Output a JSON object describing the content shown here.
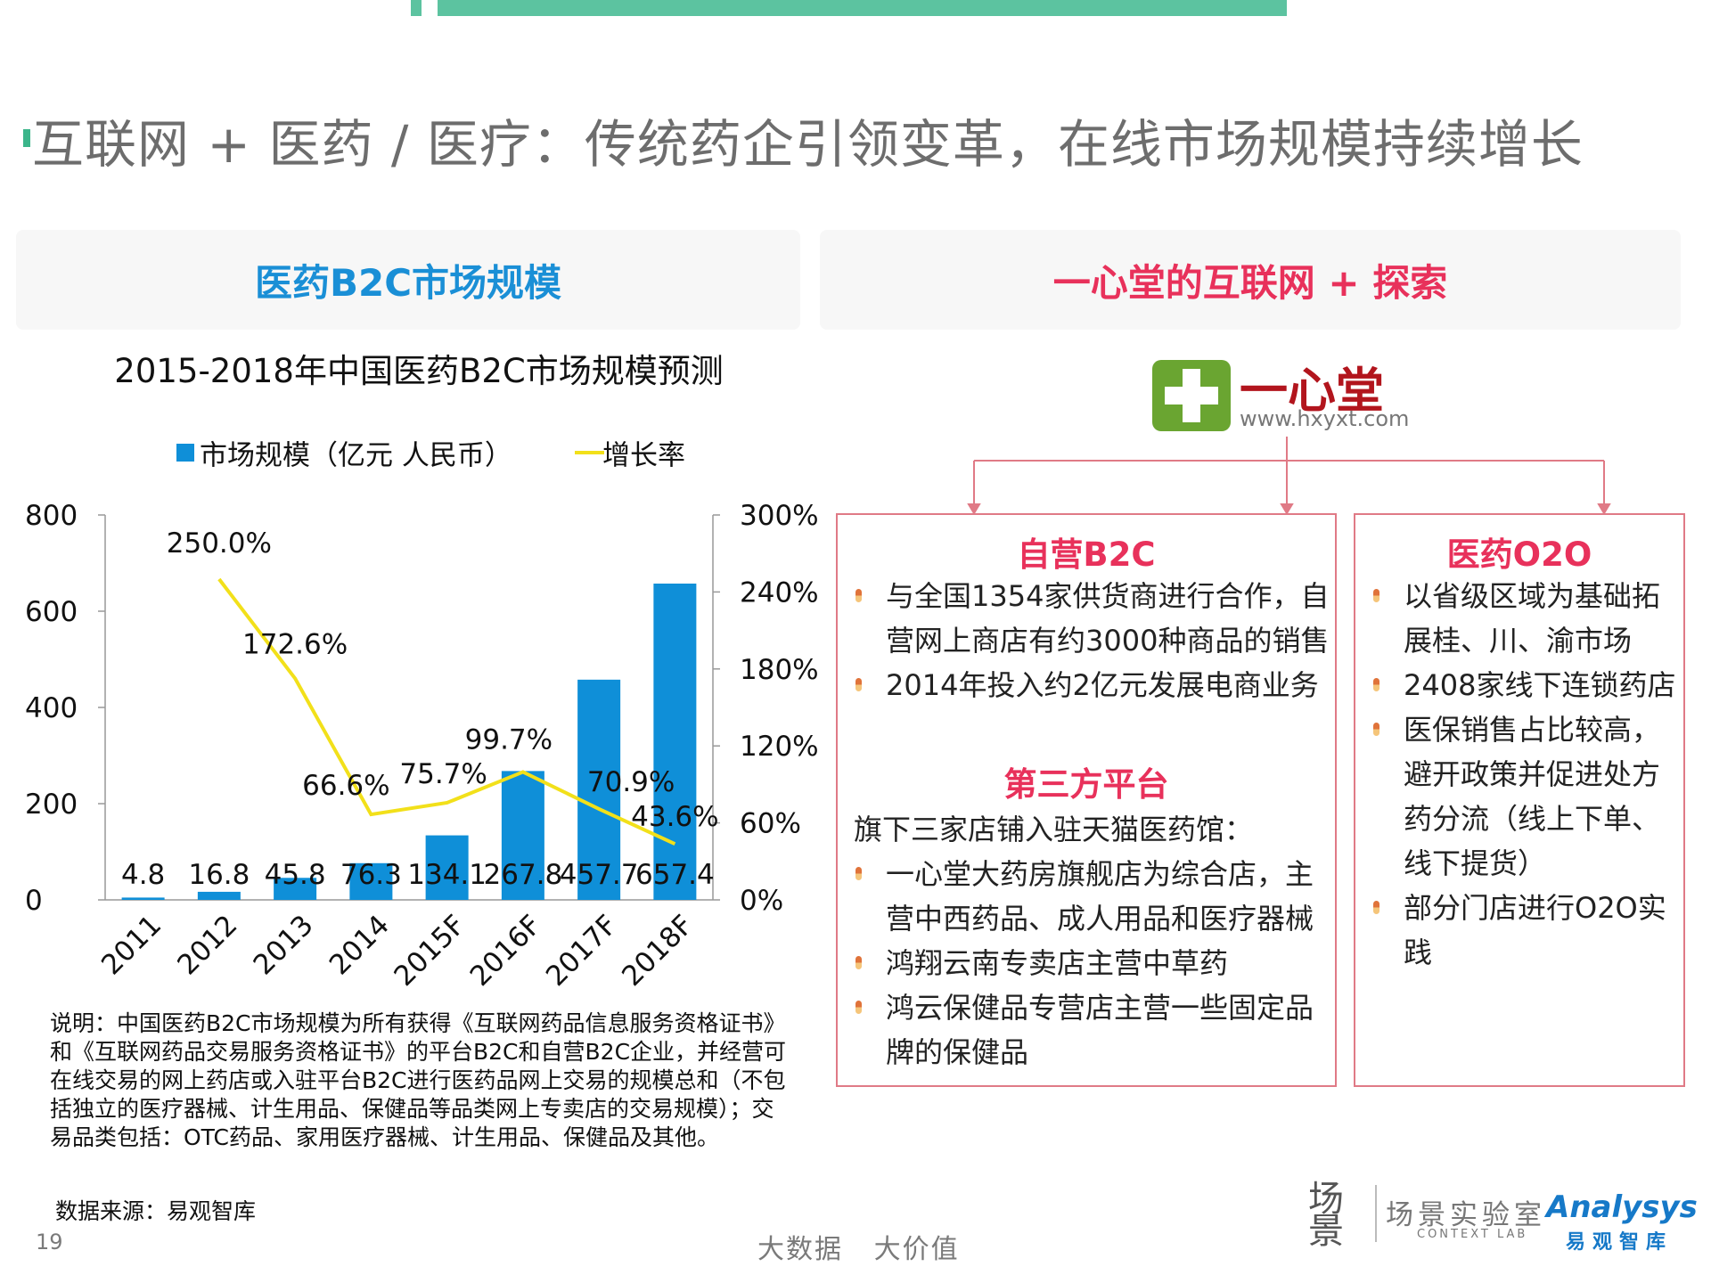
{
  "page": {
    "title": "互联网 + 医药 / 医疗：传统药企引领变革，在线市场规模持续增长",
    "number": "19",
    "slogan": "大数据   大价值"
  },
  "left_panel": {
    "heading": "医药B2C市场规模",
    "note": "说明：中国医药B2C市场规模为所有获得《互联网药品信息服务资格证书》和《互联网药品交易服务资格证书》的平台B2C和自营B2C企业，并经营可在线交易的网上药店或入驻平台B2C进行医药品网上交易的规模总和（不包括独立的医疗器械、计生用品、保健品等品类网上专卖店的交易规模）；交易品类包括：OTC药品、家用医疗器械、计生用品、保健品及其他。",
    "source": "数据来源：易观智库"
  },
  "chart_data": {
    "type": "bar",
    "title": "2015-2018年中国医药B2C市场规模预测",
    "categories": [
      "2011",
      "2012",
      "2013",
      "2014",
      "2015F",
      "2016F",
      "2017F",
      "2018F"
    ],
    "series": [
      {
        "name": "市场规模（亿元 人民币）",
        "type": "bar",
        "axis": "left",
        "values": [
          4.8,
          16.8,
          45.8,
          76.3,
          134.1,
          267.8,
          457.7,
          657.4
        ],
        "labels": [
          "4.8",
          "16.8",
          "45.8",
          "76.3",
          "134.1",
          "267.8",
          "457.7",
          "657.4"
        ],
        "color": "#0f8fd8"
      },
      {
        "name": "增长率",
        "type": "line",
        "axis": "right",
        "values": [
          null,
          250.0,
          172.6,
          66.6,
          75.7,
          99.7,
          70.9,
          43.6
        ],
        "labels": [
          "",
          "250.0%",
          "172.6%",
          "66.6%",
          "75.7%",
          "99.7%",
          "70.9%",
          "43.6%"
        ],
        "color": "#f2e01a"
      }
    ],
    "ylim": [
      0,
      800
    ],
    "yticks": [
      "800",
      "600",
      "400",
      "200",
      "0"
    ],
    "y2lim": [
      0,
      300
    ],
    "y2ticks": [
      "300%",
      "240%",
      "180%",
      "120%",
      "60%",
      "0%"
    ],
    "legend": "top"
  },
  "right_panel": {
    "heading": "一心堂的互联网 + 探索",
    "logo": {
      "name": "一心堂",
      "url": "www.hxyxt.com"
    },
    "box1": {
      "title": "自营B2C",
      "bullets": [
        "与全国1354家供货商进行合作，自营网上商店有约3000种商品的销售",
        "2014年投入约2亿元发展电商业务"
      ],
      "subtitle": "第三方平台",
      "intro": "旗下三家店铺入驻天猫医药馆：",
      "bullets2": [
        "一心堂大药房旗舰店为综合店，主营中西药品、成人用品和医疗器械",
        "鸿翔云南专卖店主营中草药",
        "鸿云保健品专营店主营一些固定品牌的保健品"
      ]
    },
    "box2": {
      "title": "医药O2O",
      "bullets": [
        "以省级区域为基础拓展桂、川、渝市场",
        "2408家线下连锁药店",
        "医保销售占比较高，避开政策并促进处方药分流（线上下单、线下提货）",
        "部分门店进行O2O实践"
      ]
    }
  },
  "brands": {
    "mark": "场景",
    "lab_cn": "场景实验室",
    "lab_en": "CONTEXT LAB",
    "analysys": "Analysys",
    "analysys_cn": "易观智库"
  }
}
